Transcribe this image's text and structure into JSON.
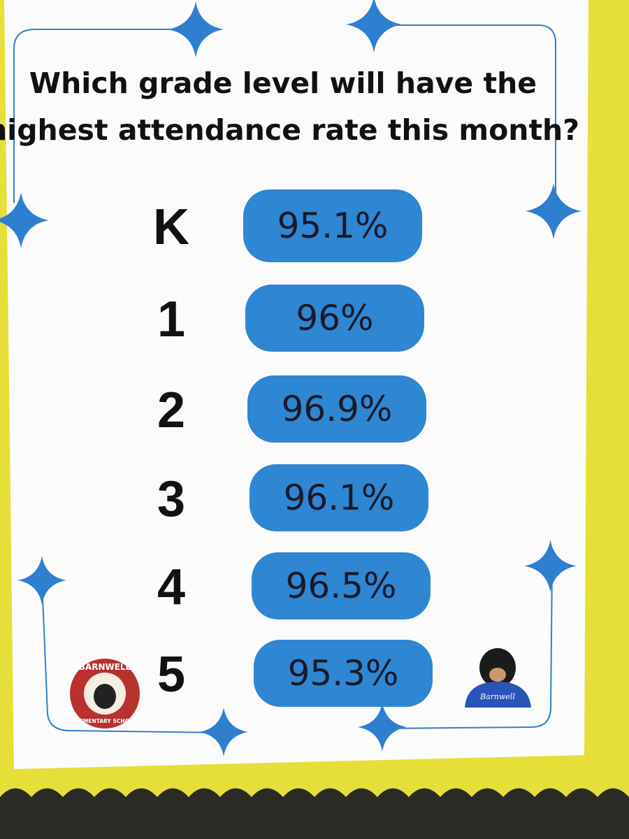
{
  "title_lines": [
    "Which grade level will have the",
    "highest attendance rate this month?"
  ],
  "rows": [
    {
      "grade": "K",
      "rate": "95.1%"
    },
    {
      "grade": "1",
      "rate": "96%"
    },
    {
      "grade": "2",
      "rate": "96.9%"
    },
    {
      "grade": "3",
      "rate": "96.1%"
    },
    {
      "grade": "4",
      "rate": "96.5%"
    },
    {
      "grade": "5",
      "rate": "95.3%"
    }
  ],
  "logo": {
    "top": "BARNWELL",
    "bottom": "ELEMENTARY SCHOOL"
  },
  "mascot_shirt": "Barnwell"
}
